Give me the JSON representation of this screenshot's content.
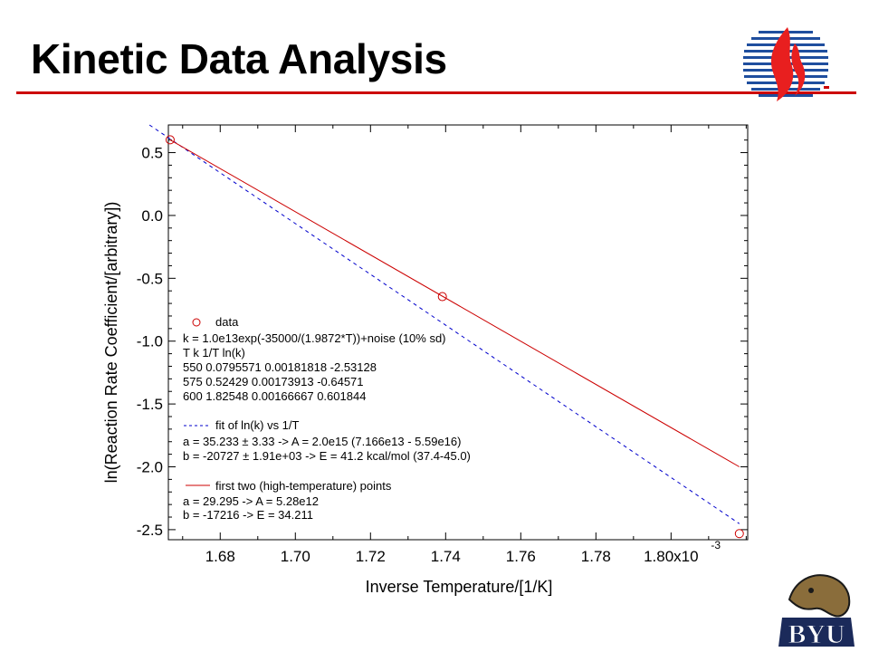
{
  "slide": {
    "title": "Kinetic Data Analysis",
    "accent_color": "#cc0000",
    "logo_icon": "flame-globe-logo-icon",
    "mascot_icon": "byu-cougar-logo-icon",
    "mascot_text": "BYU"
  },
  "chart_data": {
    "type": "scatter",
    "xlabel": "Inverse Temperature/[1/K]",
    "ylabel": "ln(Reaction Rate Coefficient/[arbitrary])",
    "xlim": [
      0.0016662,
      0.0018204
    ],
    "ylim": [
      -2.58,
      0.72
    ],
    "x_ticks": [
      0.00168,
      0.0017,
      0.00172,
      0.00174,
      0.00176,
      0.00178,
      0.0018
    ],
    "x_tick_labels": [
      "1.68",
      "1.70",
      "1.72",
      "1.74",
      "1.76",
      "1.78",
      "1.80x10"
    ],
    "x_exponent_label": "-3",
    "y_ticks": [
      0.5,
      0.0,
      -0.5,
      -1.0,
      -1.5,
      -2.0,
      -2.5
    ],
    "y_tick_labels": [
      "0.5",
      "0.0",
      "-0.5",
      "-1.0",
      "-1.5",
      "-2.0",
      "-2.5"
    ],
    "grid": false,
    "series": [
      {
        "name": "data",
        "kind": "points",
        "marker": "open-circle",
        "color": "#cc0000",
        "x": [
          0.00166667,
          0.00173913,
          0.00181818
        ],
        "y": [
          0.601844,
          -0.64571,
          -2.53128
        ]
      },
      {
        "name": "fit of ln(k) vs 1/T",
        "kind": "line",
        "style": "dashed",
        "color": "#0000cc",
        "intercept": 35.233,
        "slope": -20727
      },
      {
        "name": "first two (high-temperature) points",
        "kind": "line",
        "style": "solid",
        "color": "#cc0000",
        "x": [
          0.00166667,
          0.00181818
        ],
        "y": [
          0.601844,
          -2.0
        ]
      }
    ],
    "legend": {
      "placement": "lower-left",
      "data_label": "data",
      "data_lines": [
        "k = 1.0e13exp(-35000/(1.9872*T))+noise (10% sd)",
        "T       k          1/T          ln(k)",
        "550   0.0795571 0.00181818       -2.53128",
        "575   0.52429   0.00173913       -0.64571",
        "600   1.82548   0.00166667        0.601844"
      ],
      "fit_label": "fit of ln(k) vs 1/T",
      "fit_lines": [
        "a = 35.233 ± 3.33              ->     A = 2.0e15 (7.166e13 - 5.59e16)",
        "b = -20727 ± 1.91e+03        ->     E = 41.2 kcal/mol (37.4-45.0)"
      ],
      "two_point_label": "first two (high-temperature) points",
      "two_point_lines": [
        "a = 29.295 ->      A = 5.28e12",
        "b = -17216 ->      E = 34.211"
      ]
    }
  }
}
